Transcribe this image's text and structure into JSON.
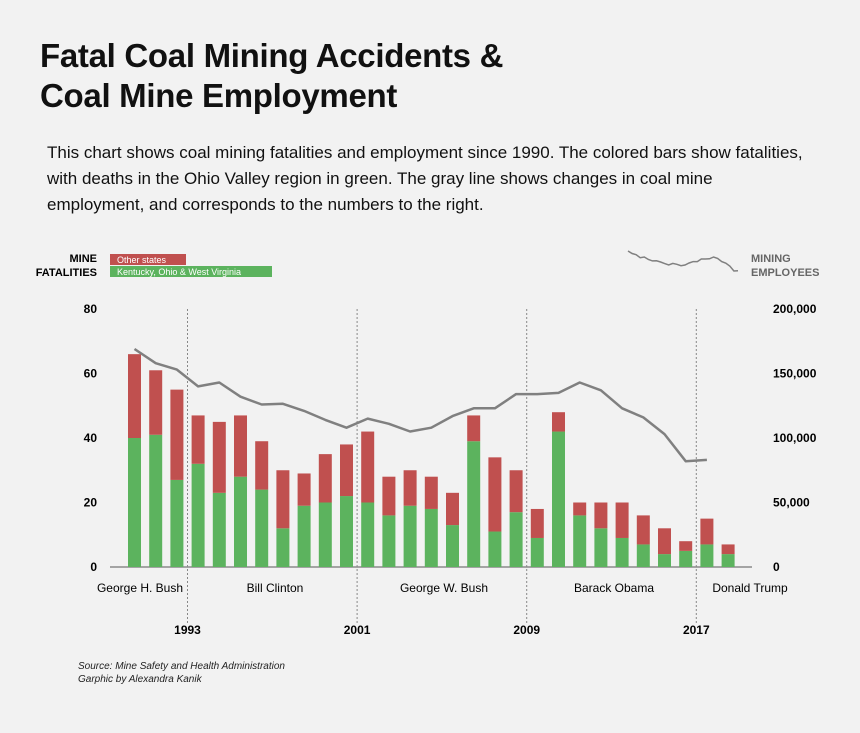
{
  "title_line1": "Fatal Coal Mining Accidents &",
  "title_line2": "Coal Mine Employment",
  "subtitle": "This chart shows coal mining fatalities and employment since 1990. The colored bars show fatalities, with deaths in the Ohio Valley region in green. The gray line shows changes in coal mine employment, and corresponds to the numbers to the right.",
  "source_line1": "Source: Mine Safety and Health Administration",
  "source_line2": "Garphic by Alexandra Kanik",
  "colors": {
    "other_states": "#c0504f",
    "ohio_valley": "#5cb35e",
    "employment_line": "#808080",
    "background": "#f2f2f2"
  },
  "chart_data": {
    "type": "bar",
    "title": "Fatal Coal Mining Accidents & Coal Mine Employment",
    "left_axis_label_line1": "MINE",
    "left_axis_label_line2": "FATALITIES",
    "right_axis_label_line1": "MINING",
    "right_axis_label_line2": "EMPLOYEES",
    "ylim": [
      0,
      80
    ],
    "yticks": [
      "0",
      "20",
      "40",
      "60",
      "80"
    ],
    "y2lim": [
      0,
      200000
    ],
    "y2ticks": [
      "0",
      "50,000",
      "100,000",
      "150,000",
      "200,000"
    ],
    "years": [
      1990,
      1991,
      1992,
      1993,
      1994,
      1995,
      1996,
      1997,
      1998,
      1999,
      2000,
      2001,
      2002,
      2003,
      2004,
      2005,
      2006,
      2007,
      2008,
      2009,
      2010,
      2011,
      2012,
      2013,
      2014,
      2015,
      2016,
      2017,
      2018
    ],
    "stacked": true,
    "series": [
      {
        "name": "Kentucky, Ohio & West Virginia",
        "color": "#5cb35e",
        "values": [
          40,
          41,
          27,
          32,
          23,
          28,
          24,
          12,
          19,
          20,
          22,
          20,
          16,
          19,
          18,
          13,
          39,
          11,
          17,
          9,
          42,
          16,
          12,
          9,
          7,
          4,
          5,
          7,
          4
        ]
      },
      {
        "name": "Other states",
        "color": "#c0504f",
        "values": [
          26,
          20,
          28,
          15,
          22,
          19,
          15,
          18,
          10,
          15,
          16,
          22,
          12,
          11,
          10,
          10,
          8,
          23,
          13,
          9,
          6,
          4,
          8,
          11,
          9,
          8,
          3,
          8,
          3
        ]
      }
    ],
    "employment": {
      "name": "Mining employees",
      "years": [
        1990,
        1991,
        1992,
        1993,
        1994,
        1995,
        1996,
        1997,
        1998,
        1999,
        2000,
        2001,
        2002,
        2003,
        2004,
        2005,
        2006,
        2007,
        2008,
        2009,
        2010,
        2011,
        2012,
        2013,
        2014,
        2015,
        2016,
        2017
      ],
      "values": [
        169000,
        158000,
        153000,
        140000,
        143000,
        132000,
        126000,
        126500,
        121000,
        114000,
        108000,
        115000,
        111000,
        105000,
        108000,
        117000,
        123000,
        123000,
        134000,
        134000,
        135000,
        143000,
        137000,
        123000,
        116000,
        103000,
        82000,
        83000
      ]
    },
    "eras": [
      {
        "label": "George H. Bush",
        "start_year": 1990
      },
      {
        "label": "Bill Clinton",
        "start_year": 1993
      },
      {
        "label": "George W. Bush",
        "start_year": 2001
      },
      {
        "label": "Barack Obama",
        "start_year": 2009
      },
      {
        "label": "Donald Trump",
        "start_year": 2017
      }
    ],
    "dividers": [
      {
        "year": 1993,
        "label": "1993"
      },
      {
        "year": 2001,
        "label": "2001"
      },
      {
        "year": 2009,
        "label": "2009"
      },
      {
        "year": 2017,
        "label": "2017"
      }
    ]
  }
}
